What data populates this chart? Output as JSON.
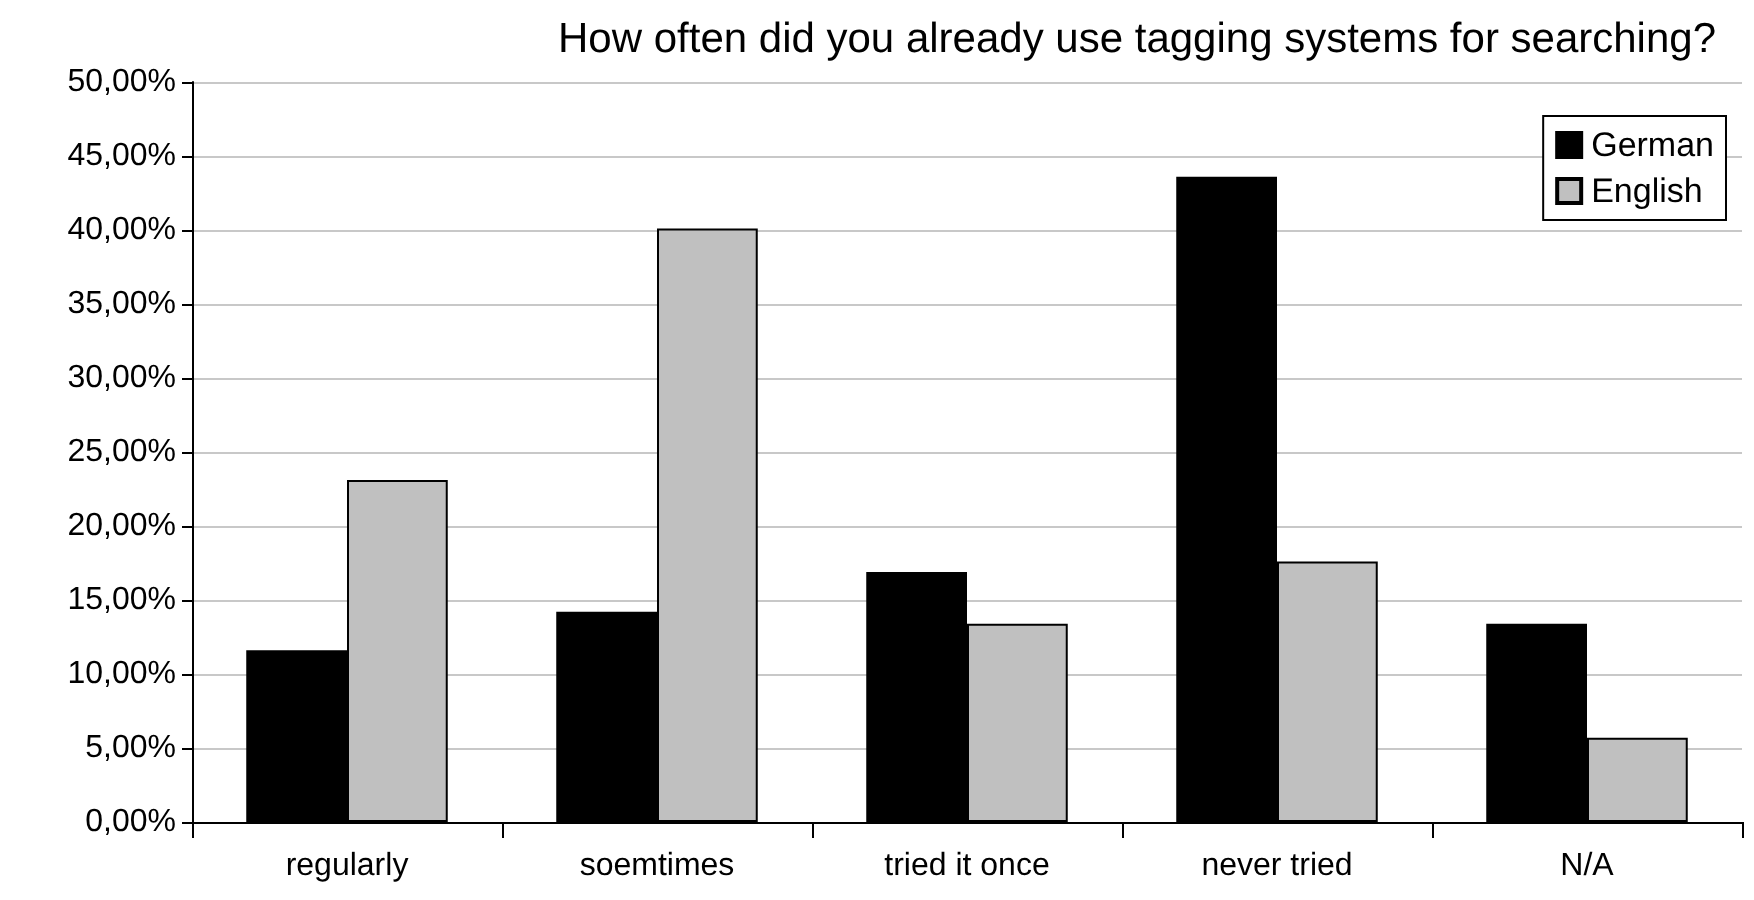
{
  "chart_data": {
    "type": "bar",
    "title": "How often did you already use tagging systems for searching?",
    "categories": [
      "regularly",
      "soemtimes",
      "tried it once",
      "never tried",
      "N/A"
    ],
    "series": [
      {
        "name": "German",
        "color": "#000000",
        "values": [
          11.6,
          14.2,
          16.9,
          43.6,
          13.4
        ]
      },
      {
        "name": "English",
        "color": "#c0c0c0",
        "values": [
          23.1,
          40.1,
          13.4,
          17.6,
          5.7
        ]
      }
    ],
    "ylim": [
      0,
      50
    ],
    "yticks": [
      {
        "value": 0,
        "label": "0,00%"
      },
      {
        "value": 5,
        "label": "5,00%"
      },
      {
        "value": 10,
        "label": "10,00%"
      },
      {
        "value": 15,
        "label": "15,00%"
      },
      {
        "value": 20,
        "label": "20,00%"
      },
      {
        "value": 25,
        "label": "25,00%"
      },
      {
        "value": 30,
        "label": "30,00%"
      },
      {
        "value": 35,
        "label": "35,00%"
      },
      {
        "value": 40,
        "label": "40,00%"
      },
      {
        "value": 45,
        "label": "45,00%"
      },
      {
        "value": 50,
        "label": "50,00%"
      }
    ],
    "grid": "y",
    "legend": "top right"
  }
}
